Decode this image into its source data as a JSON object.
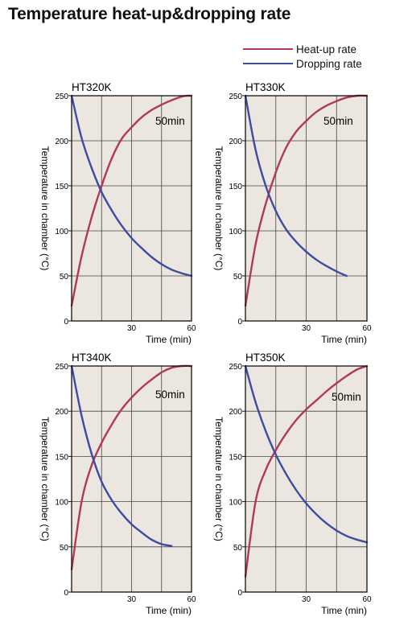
{
  "page": {
    "title": "Temperature heat-up&dropping rate"
  },
  "legend": {
    "items": [
      {
        "label": "Heat-up rate",
        "color": "#b03a55"
      },
      {
        "label": "Dropping rate",
        "color": "#3d4ba0"
      }
    ]
  },
  "chart_data": [
    {
      "type": "line",
      "title": "HT320K",
      "xlabel": "Time (min)",
      "ylabel": "Temperature in chamber (°C)",
      "xlim": [
        0,
        60
      ],
      "ylim": [
        0,
        250
      ],
      "xticks": [
        30,
        60
      ],
      "yticks": [
        0,
        50,
        100,
        150,
        200,
        250
      ],
      "grid": true,
      "annotation": "50min",
      "series": [
        {
          "name": "Heat-up rate",
          "color": "#b03a55",
          "x": [
            0,
            5,
            10,
            15,
            20,
            25,
            30,
            35,
            40,
            45,
            50,
            55,
            58,
            60
          ],
          "y": [
            17,
            72,
            115,
            150,
            180,
            202,
            215,
            226,
            234,
            240,
            245,
            249,
            250,
            250
          ]
        },
        {
          "name": "Dropping rate",
          "color": "#3d4ba0",
          "x": [
            0,
            5,
            10,
            15,
            20,
            25,
            30,
            35,
            40,
            45,
            50,
            55,
            60
          ],
          "y": [
            250,
            203,
            170,
            143,
            123,
            106,
            92,
            81,
            71,
            63,
            57,
            53,
            50
          ]
        }
      ]
    },
    {
      "type": "line",
      "title": "HT330K",
      "xlabel": "Time (min)",
      "ylabel": "Temperature in chamber (°C)",
      "xlim": [
        0,
        60
      ],
      "ylim": [
        0,
        250
      ],
      "xticks": [
        30,
        60
      ],
      "yticks": [
        0,
        50,
        100,
        150,
        200,
        250
      ],
      "grid": true,
      "annotation": "50min",
      "series": [
        {
          "name": "Heat-up rate",
          "color": "#b03a55",
          "x": [
            0,
            5,
            10,
            15,
            20,
            25,
            30,
            35,
            40,
            45,
            50,
            55,
            60
          ],
          "y": [
            17,
            85,
            130,
            165,
            192,
            210,
            222,
            232,
            239,
            244,
            248,
            250,
            250
          ]
        },
        {
          "name": "Dropping rate",
          "color": "#3d4ba0",
          "x": [
            0,
            5,
            10,
            15,
            20,
            25,
            30,
            35,
            40,
            45,
            50
          ],
          "y": [
            250,
            190,
            150,
            122,
            102,
            88,
            77,
            68,
            61,
            55,
            50
          ]
        }
      ]
    },
    {
      "type": "line",
      "title": "HT340K",
      "xlabel": "Time (min)",
      "ylabel": "Temperature in chamber (°C)",
      "xlim": [
        0,
        60
      ],
      "ylim": [
        0,
        250
      ],
      "xticks": [
        30,
        60
      ],
      "yticks": [
        0,
        50,
        100,
        150,
        200,
        250
      ],
      "grid": true,
      "annotation": "50min",
      "series": [
        {
          "name": "Heat-up rate",
          "color": "#b03a55",
          "x": [
            0,
            5,
            10,
            15,
            20,
            25,
            30,
            35,
            40,
            45,
            50,
            55,
            60
          ],
          "y": [
            25,
            100,
            140,
            165,
            185,
            202,
            215,
            226,
            235,
            243,
            248,
            250,
            250
          ]
        },
        {
          "name": "Dropping rate",
          "color": "#3d4ba0",
          "x": [
            0,
            5,
            10,
            15,
            20,
            25,
            30,
            35,
            40,
            45,
            50
          ],
          "y": [
            250,
            195,
            153,
            122,
            102,
            87,
            75,
            66,
            58,
            53,
            51
          ]
        }
      ]
    },
    {
      "type": "line",
      "title": "HT350K",
      "xlabel": "Time (min)",
      "ylabel": "Temperature in chamber (°C)",
      "xlim": [
        0,
        60
      ],
      "ylim": [
        0,
        250
      ],
      "xticks": [
        30,
        60
      ],
      "yticks": [
        0,
        50,
        100,
        150,
        200,
        250
      ],
      "grid": true,
      "annotation": "50min",
      "series": [
        {
          "name": "Heat-up rate",
          "color": "#b03a55",
          "x": [
            0,
            5,
            10,
            15,
            20,
            25,
            30,
            35,
            40,
            45,
            50,
            55,
            60
          ],
          "y": [
            17,
            100,
            135,
            157,
            175,
            190,
            202,
            212,
            222,
            231,
            239,
            246,
            250
          ]
        },
        {
          "name": "Dropping rate",
          "color": "#3d4ba0",
          "x": [
            0,
            5,
            10,
            15,
            20,
            25,
            30,
            35,
            40,
            45,
            50,
            55,
            60
          ],
          "y": [
            250,
            210,
            178,
            152,
            131,
            113,
            98,
            86,
            76,
            68,
            62,
            58,
            55
          ]
        }
      ]
    }
  ]
}
